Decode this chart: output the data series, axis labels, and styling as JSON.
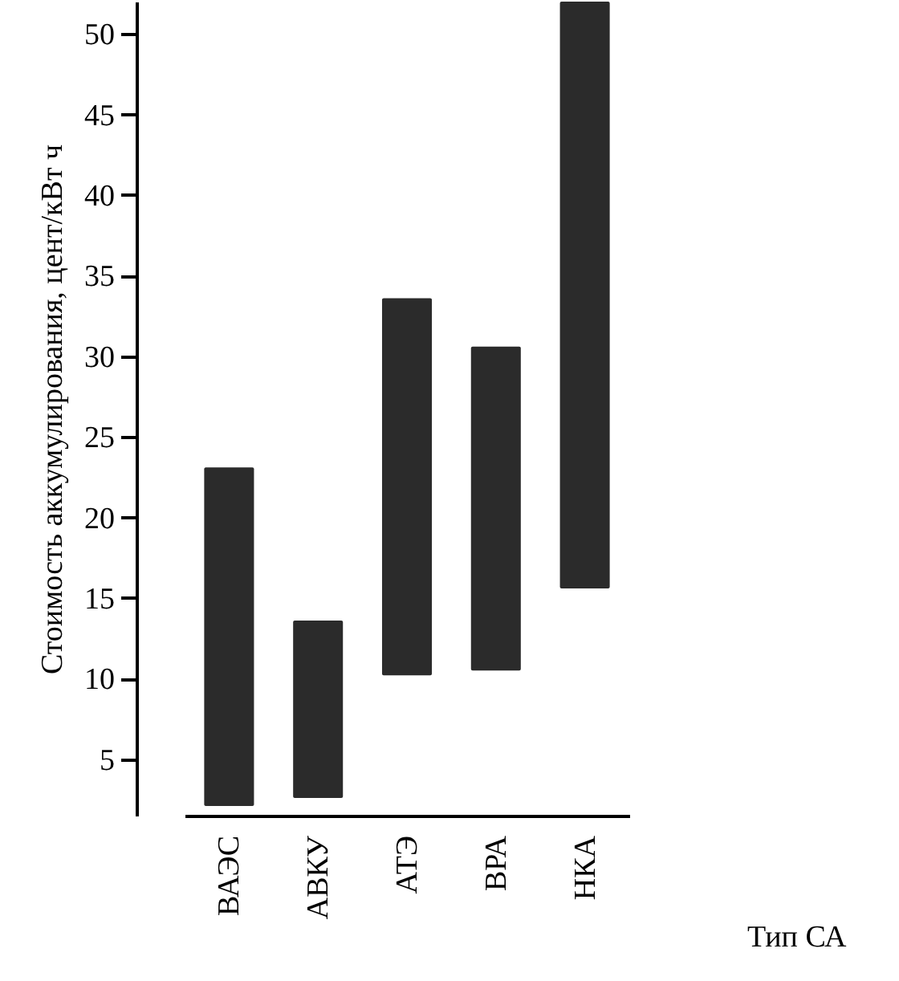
{
  "chart_data": {
    "type": "bar",
    "xlabel": "Тип СА",
    "ylabel": "Стоимость аккумулирования, цент/кВт ч",
    "categories": [
      "ВАЭС",
      "АВКУ",
      "АТЭ",
      "ВРА",
      "НКА"
    ],
    "base": [
      2.1,
      2.6,
      10.2,
      10.5,
      15.6
    ],
    "values": [
      21.0,
      11.0,
      23.4,
      20.1,
      36.4
    ],
    "color": "#2b2b2b",
    "ylim": [
      1.5,
      52
    ],
    "yticks": [
      5,
      10,
      15,
      20,
      25,
      30,
      35,
      40,
      45,
      50
    ],
    "grid": false
  }
}
